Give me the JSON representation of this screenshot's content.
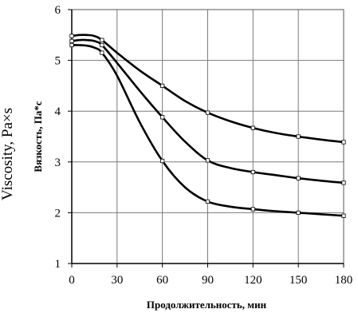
{
  "chart_data": {
    "type": "line",
    "title": "",
    "xlabel": "Продолжительность, мин",
    "ylabel": "Вязкость, Па*с",
    "ylabel_outer": "Viscosity, Pa×s",
    "xlim": [
      0,
      180
    ],
    "ylim": [
      1,
      6
    ],
    "xticks": [
      0,
      30,
      60,
      90,
      120,
      150,
      180
    ],
    "yticks": [
      1,
      2,
      3,
      4,
      5,
      6
    ],
    "grid": true,
    "legend": "none",
    "line_color": "#000000",
    "series": [
      {
        "x": [
          0,
          5,
          10,
          15,
          20,
          30,
          45,
          60,
          75,
          90,
          105,
          120,
          135,
          150,
          165,
          180
        ],
        "y": [
          5.48,
          5.5,
          5.5,
          5.48,
          5.4,
          5.15,
          4.8,
          4.5,
          4.2,
          3.97,
          3.8,
          3.67,
          3.57,
          3.5,
          3.44,
          3.39
        ],
        "markers_x": [
          0,
          20,
          60,
          90,
          120,
          150,
          180
        ]
      },
      {
        "x": [
          0,
          5,
          10,
          15,
          20,
          30,
          45,
          60,
          75,
          90,
          105,
          120,
          135,
          150,
          165,
          180
        ],
        "y": [
          5.38,
          5.4,
          5.4,
          5.38,
          5.3,
          4.95,
          4.4,
          3.88,
          3.4,
          3.03,
          2.88,
          2.8,
          2.74,
          2.68,
          2.63,
          2.59
        ],
        "markers_x": [
          0,
          20,
          60,
          90,
          120,
          150,
          180
        ]
      },
      {
        "x": [
          0,
          5,
          10,
          15,
          20,
          30,
          45,
          60,
          75,
          90,
          105,
          120,
          135,
          150,
          165,
          180
        ],
        "y": [
          5.3,
          5.3,
          5.29,
          5.25,
          5.15,
          4.7,
          3.78,
          3.02,
          2.5,
          2.22,
          2.12,
          2.07,
          2.03,
          2.0,
          1.97,
          1.94
        ],
        "markers_x": [
          0,
          20,
          60,
          90,
          120,
          150,
          180
        ]
      }
    ]
  }
}
